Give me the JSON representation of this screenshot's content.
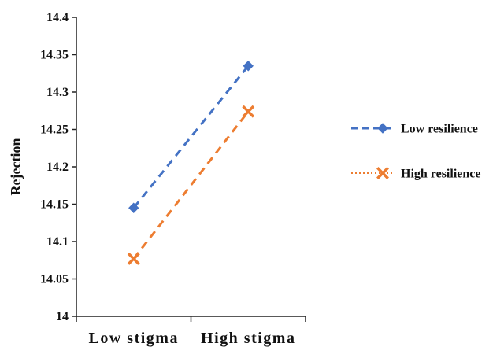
{
  "chart_data": {
    "type": "line",
    "title": "",
    "xlabel": "",
    "ylabel": "Rejection",
    "categories": [
      "Low stigma",
      "High stigma"
    ],
    "ylim": [
      14,
      14.4
    ],
    "yticks": [
      "14",
      "14.05",
      "14.1",
      "14.15",
      "14.2",
      "14.25",
      "14.3",
      "14.35",
      "14.4"
    ],
    "grid": false,
    "legend_position": "right",
    "series": [
      {
        "name": "Low resilience",
        "values": [
          14.145,
          14.335
        ],
        "color": "#4472c4",
        "line_style": "dashed",
        "marker": "diamond"
      },
      {
        "name": "High resilience",
        "values": [
          14.077,
          14.274
        ],
        "color": "#ed7d31",
        "line_style": "dashed",
        "marker": "x-star",
        "legend_line_style": "dotted"
      }
    ]
  }
}
